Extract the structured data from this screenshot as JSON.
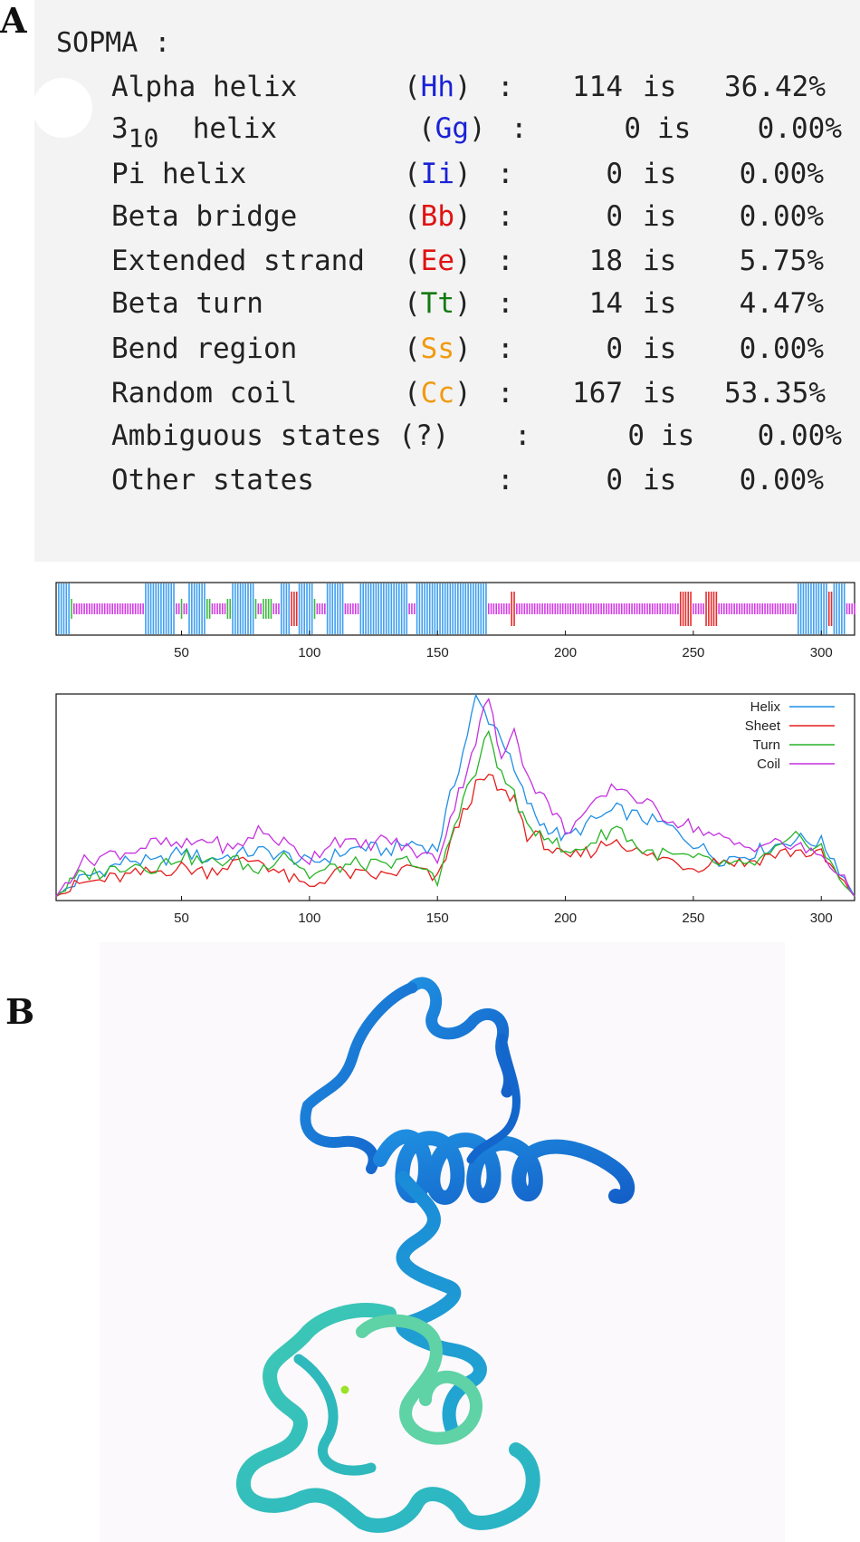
{
  "panels": {
    "a": "A",
    "b": "B"
  },
  "sopma": {
    "title": "SOPMA :",
    "rows": [
      {
        "label": "Alpha helix",
        "code": "Hh",
        "count": "114",
        "is": "is",
        "percent": "36.42%"
      },
      {
        "label": "3",
        "label_sub": "10",
        "label_rest": "helix",
        "code": "Gg",
        "count": "0",
        "is": "is",
        "percent": "0.00%"
      },
      {
        "label": "Pi helix",
        "code": "Ii",
        "count": "0",
        "is": "is",
        "percent": "0.00%"
      },
      {
        "label": "Beta bridge",
        "code": "Bb",
        "count": "0",
        "is": "is",
        "percent": "0.00%"
      },
      {
        "label": "Extended strand",
        "code": "Ee",
        "count": "18",
        "is": "is",
        "percent": "5.75%"
      },
      {
        "label": "Beta turn",
        "code": "Tt",
        "count": "14",
        "is": "is",
        "percent": "4.47%"
      },
      {
        "label": "Bend region",
        "code": "Ss",
        "count": "0",
        "is": "is",
        "percent": "0.00%"
      },
      {
        "label": "Random coil",
        "code": "Cc",
        "count": "167",
        "is": "is",
        "percent": "53.35%"
      },
      {
        "label": "Ambiguous states",
        "code": "?",
        "count": "0",
        "is": "is",
        "percent": "0.00%"
      },
      {
        "label": "Other states",
        "code": "",
        "count": "0",
        "is": "is",
        "percent": "0.00%"
      }
    ],
    "colors": {
      "helix": "#1a22d6",
      "beta": "#e01212",
      "turn": "#137a13",
      "coil": "#f19a10"
    }
  },
  "chart_data": [
    {
      "type": "bar",
      "xlim": [
        1,
        313
      ],
      "xticks": [
        50,
        100,
        150,
        200,
        250,
        300
      ],
      "state_colors": {
        "helix": "#3f9ff0",
        "strand": "#e62c2c",
        "turn": "#3dbb3d",
        "coil": "#d43be6"
      },
      "segments": [
        {
          "state": "helix",
          "start": 2,
          "end": 6
        },
        {
          "state": "turn",
          "start": 7,
          "end": 7
        },
        {
          "state": "coil",
          "start": 8,
          "end": 35
        },
        {
          "state": "helix",
          "start": 36,
          "end": 47
        },
        {
          "state": "coil",
          "start": 48,
          "end": 49
        },
        {
          "state": "turn",
          "start": 50,
          "end": 50
        },
        {
          "state": "coil",
          "start": 51,
          "end": 52
        },
        {
          "state": "helix",
          "start": 53,
          "end": 59
        },
        {
          "state": "turn",
          "start": 60,
          "end": 61
        },
        {
          "state": "coil",
          "start": 62,
          "end": 67
        },
        {
          "state": "turn",
          "start": 68,
          "end": 69
        },
        {
          "state": "helix",
          "start": 70,
          "end": 78
        },
        {
          "state": "turn",
          "start": 79,
          "end": 79
        },
        {
          "state": "coil",
          "start": 80,
          "end": 81
        },
        {
          "state": "turn",
          "start": 82,
          "end": 85
        },
        {
          "state": "coil",
          "start": 86,
          "end": 88
        },
        {
          "state": "helix",
          "start": 89,
          "end": 92
        },
        {
          "state": "strand",
          "start": 93,
          "end": 95
        },
        {
          "state": "helix",
          "start": 96,
          "end": 101
        },
        {
          "state": "turn",
          "start": 102,
          "end": 102
        },
        {
          "state": "coil",
          "start": 103,
          "end": 106
        },
        {
          "state": "helix",
          "start": 107,
          "end": 113
        },
        {
          "state": "coil",
          "start": 114,
          "end": 119
        },
        {
          "state": "helix",
          "start": 120,
          "end": 138
        },
        {
          "state": "coil",
          "start": 139,
          "end": 141
        },
        {
          "state": "helix",
          "start": 142,
          "end": 169
        },
        {
          "state": "coil",
          "start": 170,
          "end": 178
        },
        {
          "state": "strand",
          "start": 179,
          "end": 180
        },
        {
          "state": "coil",
          "start": 181,
          "end": 244
        },
        {
          "state": "strand",
          "start": 245,
          "end": 249
        },
        {
          "state": "coil",
          "start": 250,
          "end": 254
        },
        {
          "state": "strand",
          "start": 255,
          "end": 259
        },
        {
          "state": "coil",
          "start": 260,
          "end": 290
        },
        {
          "state": "helix",
          "start": 291,
          "end": 302
        },
        {
          "state": "strand",
          "start": 303,
          "end": 304
        },
        {
          "state": "helix",
          "start": 305,
          "end": 309
        },
        {
          "state": "coil",
          "start": 310,
          "end": 313
        }
      ]
    },
    {
      "type": "line",
      "xlim": [
        1,
        313
      ],
      "ylim": [
        0,
        1
      ],
      "xticks": [
        50,
        100,
        150,
        200,
        250,
        300
      ],
      "legend_position": "top-right",
      "x": [
        1,
        10,
        20,
        30,
        40,
        50,
        60,
        70,
        80,
        90,
        100,
        110,
        120,
        130,
        140,
        150,
        155,
        160,
        165,
        170,
        175,
        180,
        185,
        190,
        195,
        200,
        210,
        220,
        230,
        240,
        250,
        260,
        270,
        280,
        290,
        300,
        305,
        313
      ],
      "series": [
        {
          "name": "Helix",
          "color": "#1f8fe6",
          "values": [
            0.02,
            0.1,
            0.15,
            0.2,
            0.18,
            0.24,
            0.2,
            0.22,
            0.24,
            0.22,
            0.18,
            0.22,
            0.26,
            0.24,
            0.28,
            0.25,
            0.5,
            0.72,
            0.98,
            0.88,
            0.8,
            0.62,
            0.48,
            0.38,
            0.34,
            0.3,
            0.38,
            0.44,
            0.4,
            0.36,
            0.28,
            0.2,
            0.22,
            0.26,
            0.3,
            0.28,
            0.2,
            0.02
          ]
        },
        {
          "name": "Sheet",
          "color": "#e61e1e",
          "values": [
            0.02,
            0.08,
            0.1,
            0.12,
            0.14,
            0.16,
            0.14,
            0.18,
            0.2,
            0.12,
            0.06,
            0.14,
            0.12,
            0.12,
            0.16,
            0.1,
            0.28,
            0.42,
            0.55,
            0.6,
            0.52,
            0.5,
            0.32,
            0.3,
            0.24,
            0.2,
            0.24,
            0.3,
            0.22,
            0.2,
            0.16,
            0.2,
            0.18,
            0.22,
            0.24,
            0.22,
            0.14,
            0.02
          ]
        },
        {
          "name": "Turn",
          "color": "#27b427",
          "values": [
            0.02,
            0.12,
            0.14,
            0.18,
            0.16,
            0.22,
            0.18,
            0.2,
            0.14,
            0.24,
            0.12,
            0.16,
            0.18,
            0.16,
            0.2,
            0.08,
            0.3,
            0.5,
            0.62,
            0.82,
            0.6,
            0.52,
            0.34,
            0.34,
            0.3,
            0.22,
            0.28,
            0.36,
            0.24,
            0.22,
            0.2,
            0.18,
            0.16,
            0.22,
            0.3,
            0.26,
            0.14,
            0.02
          ]
        },
        {
          "name": "Coil",
          "color": "#c531e0",
          "values": [
            0.02,
            0.18,
            0.22,
            0.24,
            0.28,
            0.26,
            0.3,
            0.24,
            0.34,
            0.28,
            0.2,
            0.3,
            0.26,
            0.3,
            0.24,
            0.2,
            0.4,
            0.58,
            0.78,
            0.99,
            0.66,
            0.86,
            0.6,
            0.52,
            0.44,
            0.34,
            0.44,
            0.56,
            0.48,
            0.4,
            0.36,
            0.3,
            0.26,
            0.28,
            0.26,
            0.22,
            0.16,
            0.02
          ]
        }
      ]
    }
  ]
}
